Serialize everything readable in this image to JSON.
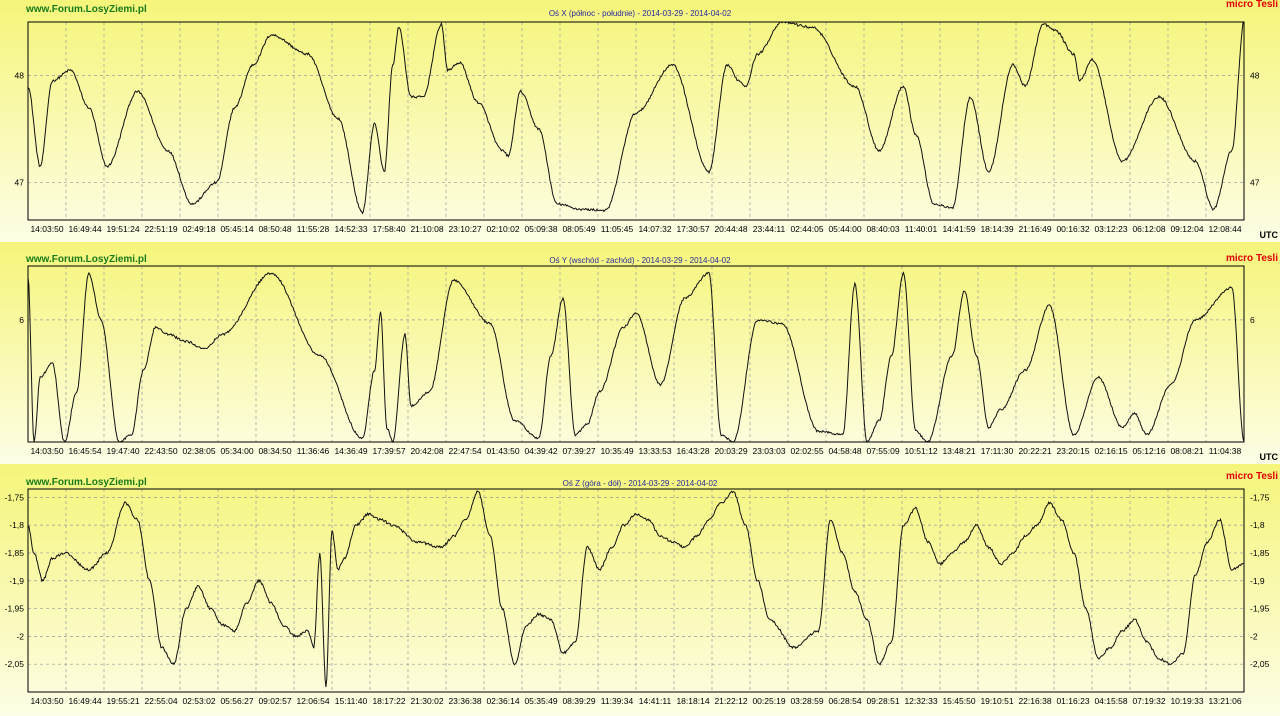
{
  "site": "www.Forum.LosyZiemi.pl",
  "unit": "micro Tesli",
  "utc": "UTC",
  "chart_data": [
    {
      "type": "line",
      "title": "Oś X (północ - południe) - 2014-03-29 - 2014-04-02",
      "ylim": [
        46.65,
        48.5
      ],
      "yticks": [
        47,
        48
      ],
      "ytick_labels": [
        "47",
        "48"
      ],
      "xtick_labels": [
        "14:03:50",
        "16:49:44",
        "19:51:24",
        "22:51:19",
        "02:49:18",
        "05:45:14",
        "08:50:48",
        "11:55:28",
        "14:52:33",
        "17:58:40",
        "21:10:08",
        "23:10:27",
        "02:10:02",
        "05:09:38",
        "08:05:49",
        "11:05:45",
        "14:07:32",
        "17:30:57",
        "20:44:48",
        "23:44:11",
        "02:44:05",
        "05:44:00",
        "08:40:03",
        "11:40:01",
        "14:41:59",
        "18:14:39",
        "21:16:49",
        "00:16:32",
        "03:12:23",
        "06:12:08",
        "09:12:04",
        "12:08:44"
      ],
      "grid": true,
      "series": [
        {
          "x": [
            0,
            0.01,
            0.02,
            0.035,
            0.05,
            0.065,
            0.09,
            0.115,
            0.135,
            0.155,
            0.17,
            0.185,
            0.2,
            0.23,
            0.255,
            0.275,
            0.285,
            0.293,
            0.3,
            0.305,
            0.315,
            0.325,
            0.34,
            0.345,
            0.355,
            0.37,
            0.39,
            0.395,
            0.405,
            0.42,
            0.435,
            0.455,
            0.475,
            0.5,
            0.53,
            0.56,
            0.575,
            0.585,
            0.59,
            0.6,
            0.62,
            0.645,
            0.68,
            0.7,
            0.72,
            0.73,
            0.745,
            0.76,
            0.775,
            0.79,
            0.81,
            0.82,
            0.835,
            0.845,
            0.86,
            0.865,
            0.875,
            0.9,
            0.93,
            0.96,
            0.975,
            0.99,
            1
          ],
          "y": [
            47.9,
            47.15,
            47.95,
            48.05,
            47.7,
            47.15,
            47.85,
            47.3,
            46.8,
            47,
            47.7,
            48.1,
            48.38,
            48.2,
            47.6,
            46.72,
            47.55,
            47.1,
            48.1,
            48.45,
            47.8,
            47.8,
            48.48,
            48.05,
            48.12,
            47.75,
            47.3,
            47.25,
            47.85,
            47.5,
            46.8,
            46.75,
            46.74,
            47.65,
            48.1,
            47.1,
            48.1,
            47.95,
            47.9,
            48.2,
            48.5,
            48.45,
            47.9,
            47.3,
            47.9,
            47.45,
            46.8,
            46.76,
            47.8,
            47.1,
            48.1,
            47.9,
            48.48,
            48.42,
            48.2,
            47.95,
            48.15,
            47.2,
            47.8,
            47.2,
            46.75,
            47.3,
            48.5
          ]
        }
      ]
    },
    {
      "type": "line",
      "title": "Oś Y (wschód - zachód) - 2014-03-29 - 2014-04-02",
      "ylim": [
        4.3,
        6.75
      ],
      "yticks": [
        6
      ],
      "ytick_labels": [
        "6"
      ],
      "xtick_labels": [
        "14:03:50",
        "16:45:54",
        "19:47:40",
        "22:43:50",
        "02:38:05",
        "05:34:00",
        "08:34:50",
        "11:36:46",
        "14:36:49",
        "17:39:57",
        "20:42:08",
        "22:47:54",
        "01:43:50",
        "04:39:42",
        "07:39:27",
        "10:35:49",
        "13:33:53",
        "16:43:28",
        "20:03:29",
        "23:03:03",
        "02:02:55",
        "04:58:48",
        "07:55:09",
        "10:51:12",
        "13:48:21",
        "17:11:30",
        "20:22:21",
        "23:20:15",
        "02:16:15",
        "05:12:16",
        "08:08:21",
        "11:04:38"
      ],
      "grid": true,
      "series": [
        {
          "x": [
            0,
            0.005,
            0.01,
            0.02,
            0.03,
            0.04,
            0.05,
            0.06,
            0.075,
            0.085,
            0.095,
            0.105,
            0.115,
            0.13,
            0.145,
            0.16,
            0.2,
            0.24,
            0.275,
            0.285,
            0.29,
            0.295,
            0.3,
            0.31,
            0.315,
            0.33,
            0.35,
            0.38,
            0.4,
            0.42,
            0.43,
            0.44,
            0.45,
            0.46,
            0.47,
            0.49,
            0.5,
            0.52,
            0.54,
            0.56,
            0.57,
            0.58,
            0.6,
            0.62,
            0.65,
            0.67,
            0.68,
            0.69,
            0.7,
            0.71,
            0.72,
            0.73,
            0.74,
            0.76,
            0.77,
            0.78,
            0.79,
            0.8,
            0.82,
            0.84,
            0.86,
            0.88,
            0.9,
            0.91,
            0.92,
            0.94,
            0.96,
            0.99,
            1
          ],
          "y": [
            6.6,
            4.3,
            5.2,
            5.4,
            4.3,
            5,
            6.65,
            6,
            4.3,
            4.4,
            5.3,
            5.9,
            5.8,
            5.7,
            5.6,
            5.8,
            6.65,
            5.5,
            4.35,
            5.3,
            6.1,
            4.5,
            4.3,
            5.8,
            4.8,
            5,
            6.55,
            5.95,
            4.6,
            4.35,
            5.5,
            6.3,
            4.4,
            4.55,
            5,
            5.9,
            6.1,
            5.1,
            6.3,
            6.65,
            4.4,
            4.3,
            6,
            5.95,
            4.45,
            4.4,
            6.5,
            4.3,
            4.6,
            5.5,
            6.65,
            4.45,
            4.3,
            5.5,
            6.4,
            5.5,
            4.5,
            4.75,
            5.3,
            6.2,
            4.4,
            5.2,
            4.5,
            4.7,
            4.4,
            5.1,
            6,
            6.45,
            4.3
          ]
        }
      ]
    },
    {
      "type": "line",
      "title": "Oś Z (góra - dół) - 2014-03-29 - 2014-04-02",
      "ylim": [
        -2.1,
        -1.735
      ],
      "yticks": [
        -1.75,
        -1.8,
        -1.85,
        -1.9,
        -1.95,
        -2,
        -2.05
      ],
      "ytick_labels": [
        "-1,75",
        "-1,8",
        "-1,85",
        "-1,9",
        "-1,95",
        "-2",
        "-2,05"
      ],
      "xtick_labels": [
        "14:03:50",
        "16:49:44",
        "19:55:21",
        "22:55:04",
        "02:53:02",
        "05:56:27",
        "09:02:57",
        "12:06:54",
        "15:11:40",
        "18:17:22",
        "21:30:02",
        "23:36:38",
        "02:36:14",
        "05:35:49",
        "08:39:29",
        "11:39:34",
        "14:41:11",
        "18:18:14",
        "21:22:12",
        "00:25:19",
        "03:28:59",
        "06:28:54",
        "09:28:51",
        "12:32:33",
        "15:45:50",
        "19:10:51",
        "22:16:38",
        "01:16:23",
        "04:15:58",
        "07:19:32",
        "10:19:33",
        "13:21:06"
      ],
      "grid": true,
      "series": [
        {
          "x": [
            0,
            0.005,
            0.012,
            0.02,
            0.03,
            0.05,
            0.065,
            0.08,
            0.09,
            0.1,
            0.11,
            0.12,
            0.13,
            0.14,
            0.15,
            0.16,
            0.17,
            0.18,
            0.19,
            0.2,
            0.21,
            0.22,
            0.23,
            0.235,
            0.24,
            0.245,
            0.25,
            0.255,
            0.26,
            0.27,
            0.28,
            0.29,
            0.3,
            0.32,
            0.34,
            0.35,
            0.36,
            0.37,
            0.38,
            0.39,
            0.4,
            0.41,
            0.42,
            0.43,
            0.44,
            0.45,
            0.46,
            0.47,
            0.48,
            0.49,
            0.5,
            0.51,
            0.52,
            0.53,
            0.54,
            0.55,
            0.56,
            0.57,
            0.58,
            0.59,
            0.6,
            0.61,
            0.63,
            0.65,
            0.66,
            0.67,
            0.68,
            0.69,
            0.7,
            0.71,
            0.72,
            0.73,
            0.74,
            0.75,
            0.76,
            0.77,
            0.78,
            0.79,
            0.8,
            0.81,
            0.82,
            0.83,
            0.84,
            0.85,
            0.86,
            0.87,
            0.88,
            0.89,
            0.9,
            0.91,
            0.92,
            0.93,
            0.94,
            0.95,
            0.96,
            0.97,
            0.98,
            0.99,
            1
          ],
          "y": [
            -1.8,
            -1.85,
            -1.9,
            -1.86,
            -1.85,
            -1.88,
            -1.85,
            -1.76,
            -1.79,
            -1.9,
            -2.02,
            -2.05,
            -1.95,
            -1.91,
            -1.95,
            -1.98,
            -1.99,
            -1.94,
            -1.9,
            -1.94,
            -1.98,
            -2,
            -1.99,
            -2.02,
            -1.85,
            -2.09,
            -1.81,
            -1.88,
            -1.86,
            -1.8,
            -1.78,
            -1.79,
            -1.8,
            -1.83,
            -1.84,
            -1.82,
            -1.79,
            -1.74,
            -1.82,
            -1.95,
            -2.05,
            -1.98,
            -1.96,
            -1.97,
            -2.03,
            -2.01,
            -1.84,
            -1.88,
            -1.84,
            -1.8,
            -1.78,
            -1.79,
            -1.82,
            -1.83,
            -1.84,
            -1.82,
            -1.79,
            -1.76,
            -1.74,
            -1.8,
            -1.9,
            -1.97,
            -2.02,
            -1.99,
            -1.79,
            -1.85,
            -1.92,
            -1.97,
            -2.05,
            -2.01,
            -1.8,
            -1.77,
            -1.83,
            -1.87,
            -1.85,
            -1.83,
            -1.8,
            -1.84,
            -1.87,
            -1.85,
            -1.82,
            -1.8,
            -1.76,
            -1.79,
            -1.85,
            -1.95,
            -2.04,
            -2.02,
            -1.99,
            -1.97,
            -2.01,
            -2.04,
            -2.05,
            -2.03,
            -1.89,
            -1.83,
            -1.79,
            -1.88,
            -1.87
          ]
        }
      ]
    }
  ]
}
